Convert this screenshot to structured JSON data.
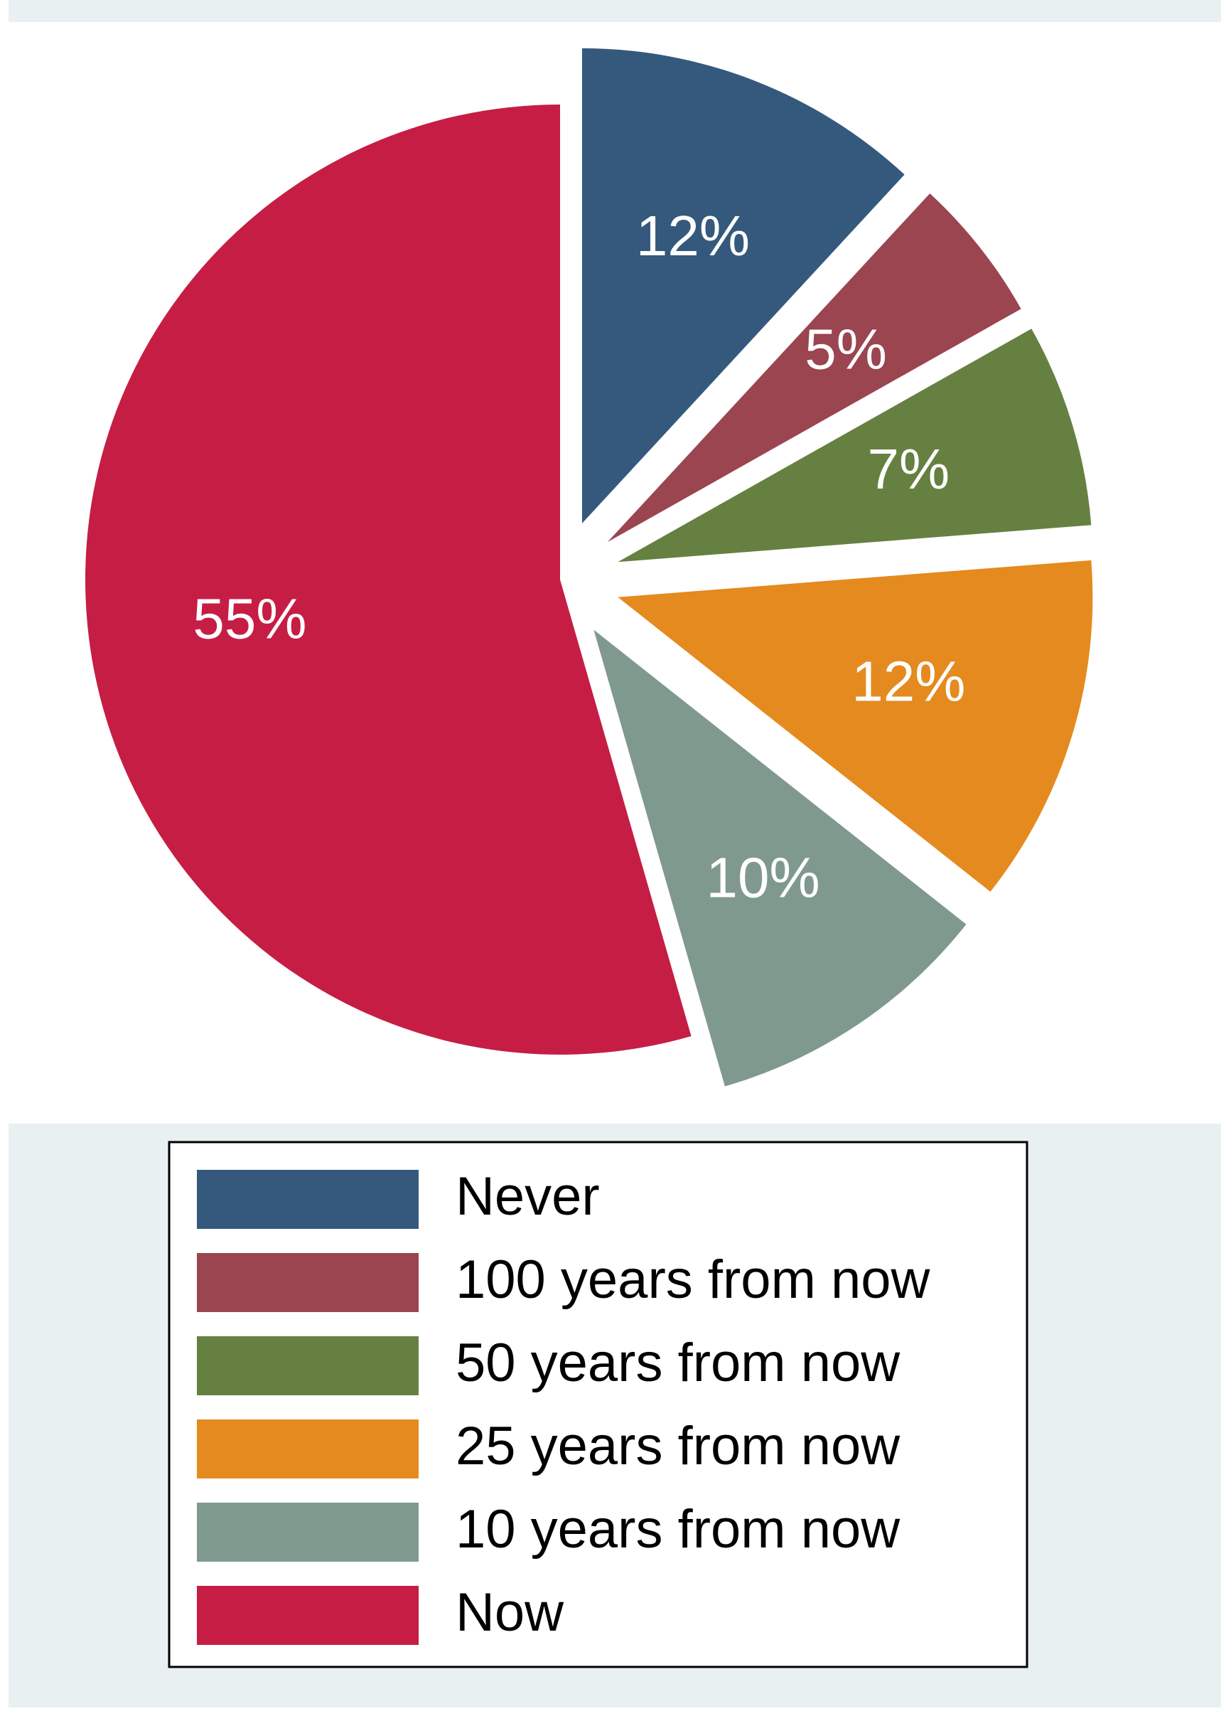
{
  "chart_data": {
    "type": "pie",
    "categories": [
      "Never",
      "100 years from now",
      "50 years from now",
      "25 years from now",
      "10 years from now",
      "Now"
    ],
    "values": [
      12,
      5,
      7,
      12,
      10,
      55
    ],
    "value_labels": [
      "12%",
      "5%",
      "7%",
      "12%",
      "10%",
      "55%"
    ],
    "colors": [
      "#34597c",
      "#9a4550",
      "#668041",
      "#e58a1e",
      "#80998e",
      "#c61d44"
    ],
    "legend": "bottom"
  }
}
